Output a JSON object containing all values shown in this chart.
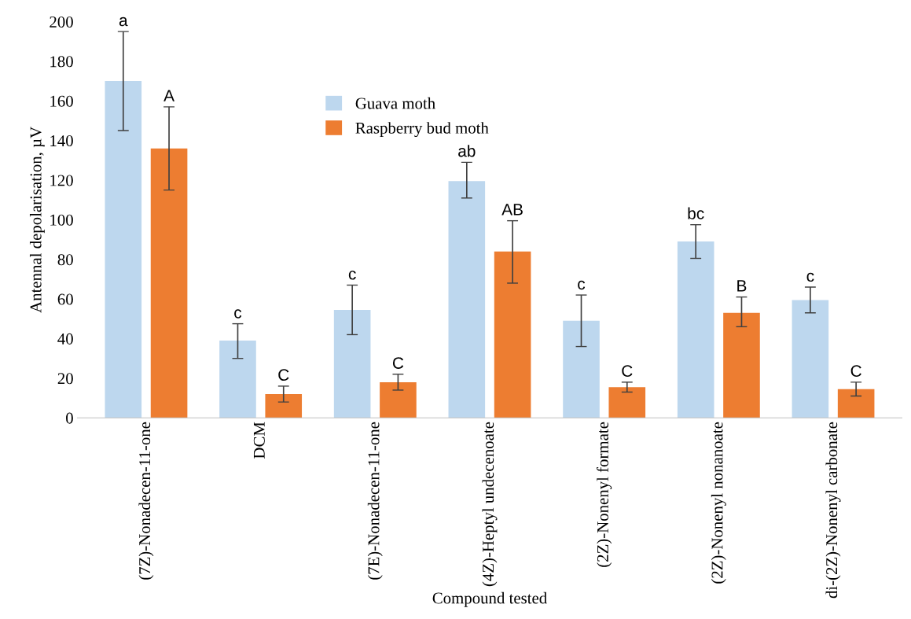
{
  "chart_data": {
    "type": "bar",
    "xlabel": "Compound tested",
    "ylabel": "Antennal depolarisation, µV",
    "categories": [
      "(7Z)-Nonadecen-11-one",
      "DCM",
      "(7E)-Nonadecen-11-one",
      "(4Z)-Heptyl undecenoate",
      "(2Z)-Nonenyl formate",
      "(2Z)-Nonenyl nonanoate",
      "di-(2Z)-Nonenyl carbonate"
    ],
    "series": [
      {
        "name": "Guava moth",
        "color": "#bdd7ee",
        "values": [
          170,
          39,
          54.5,
          119.5,
          49,
          89,
          59.5
        ],
        "errors": [
          [
            145,
            195
          ],
          [
            30,
            47.5
          ],
          [
            42,
            67
          ],
          [
            111,
            129
          ],
          [
            36,
            62
          ],
          [
            80.5,
            97.5
          ],
          [
            53,
            66
          ]
        ]
      },
      {
        "name": "Raspberry bud moth",
        "color": "#ed7d31",
        "values": [
          136,
          12,
          18,
          84,
          15.5,
          53,
          14.5
        ],
        "errors": [
          [
            115,
            157
          ],
          [
            8,
            16
          ],
          [
            14,
            22
          ],
          [
            68,
            99.5
          ],
          [
            13,
            18
          ],
          [
            46,
            61
          ],
          [
            11,
            18
          ]
        ]
      }
    ],
    "ylim": [
      0,
      200
    ],
    "yticks": [
      0,
      20,
      40,
      60,
      80,
      100,
      120,
      140,
      160,
      180,
      200
    ],
    "grid": false,
    "legend": "top",
    "annotations": [
      "a",
      "A",
      "c",
      "C",
      "c",
      "C",
      "ab",
      "AB",
      "c",
      "C",
      "bc",
      "B",
      "c",
      "C"
    ]
  }
}
